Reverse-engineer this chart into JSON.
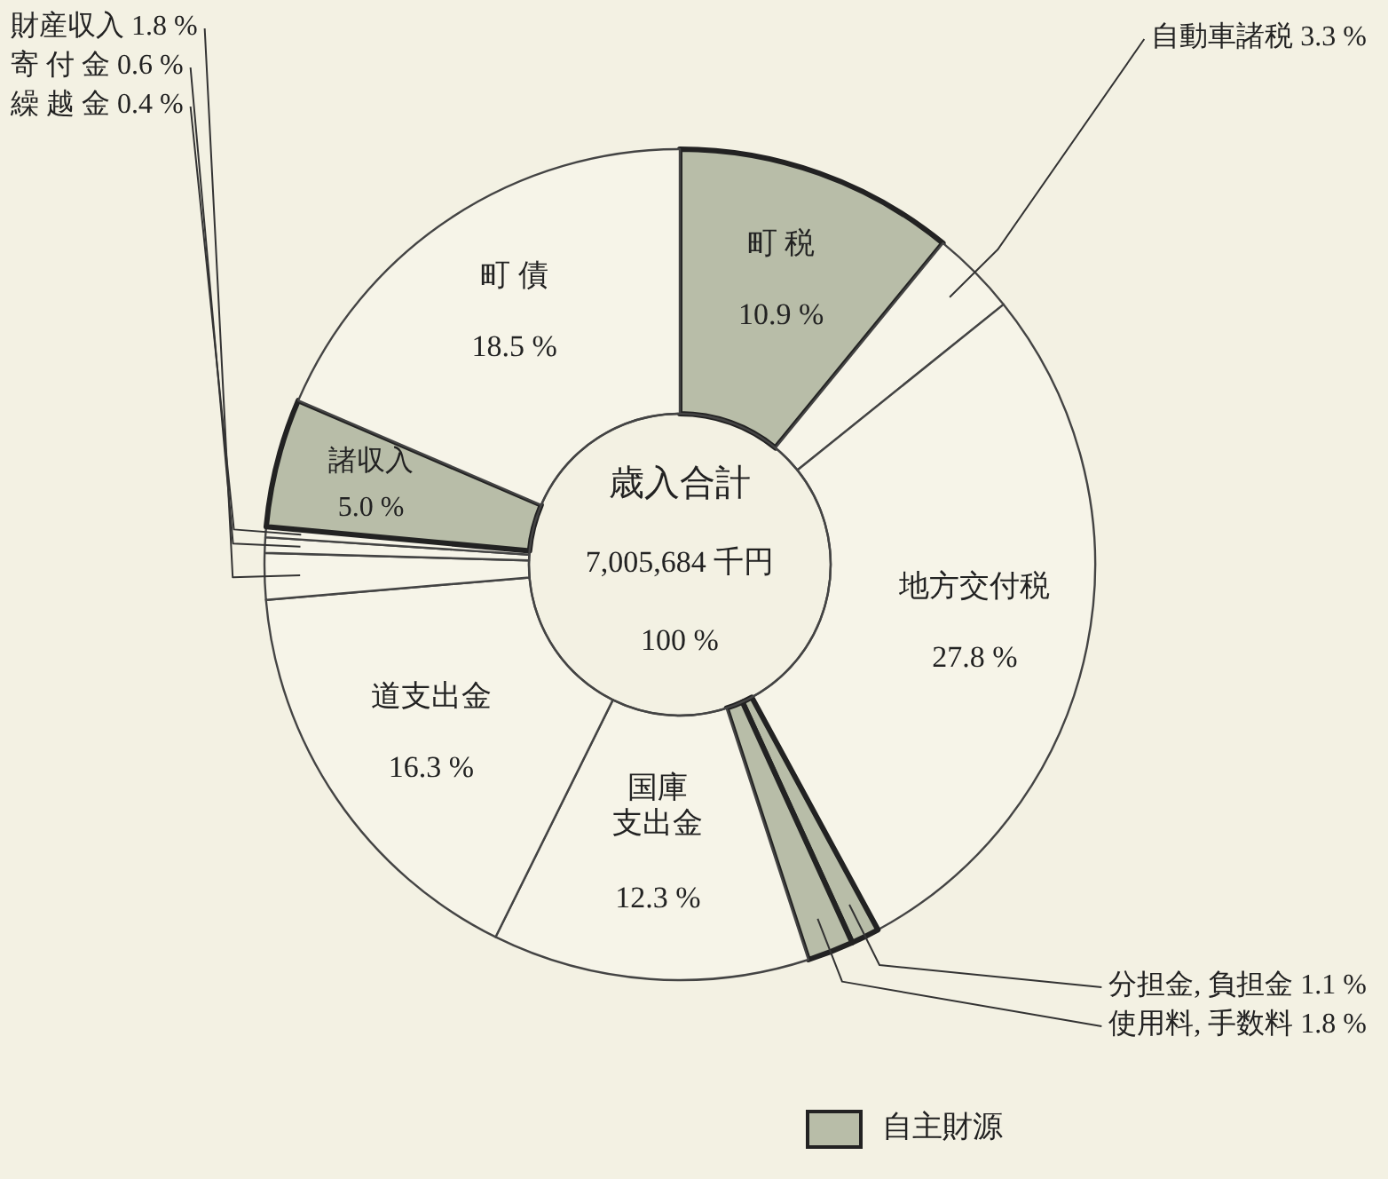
{
  "chart_data": {
    "type": "donut",
    "categories": [
      "町 税",
      "自動車諸税",
      "地方交付税",
      "分担金, 負担金",
      "使用料, 手数料",
      "国庫支出金",
      "道支出金",
      "財産収入",
      "寄 付 金",
      "繰 越 金",
      "諸収入",
      "町 債"
    ],
    "values": [
      10.9,
      3.3,
      27.8,
      1.1,
      1.8,
      12.3,
      16.3,
      1.8,
      0.6,
      0.4,
      5.0,
      18.5
    ],
    "value_labels": [
      "10.9 %",
      "3.3 %",
      "27.8 %",
      "1.1 %",
      "1.8 %",
      "12.3 %",
      "16.3 %",
      "1.8 %",
      "0.6 %",
      "0.4 %",
      "5.0 %",
      "18.5 %"
    ],
    "colors": [
      "#b8bda8",
      "#f6f4e8",
      "#f6f4e8",
      "#b8bda8",
      "#b8bda8",
      "#f6f4e8",
      "#f6f4e8",
      "#f6f4e8",
      "#f6f4e8",
      "#f6f4e8",
      "#b8bda8",
      "#f6f4e8"
    ],
    "annotations": [
      "歳入合計",
      "7,005,684 千円",
      "100 %",
      "自主財源"
    ]
  }
}
